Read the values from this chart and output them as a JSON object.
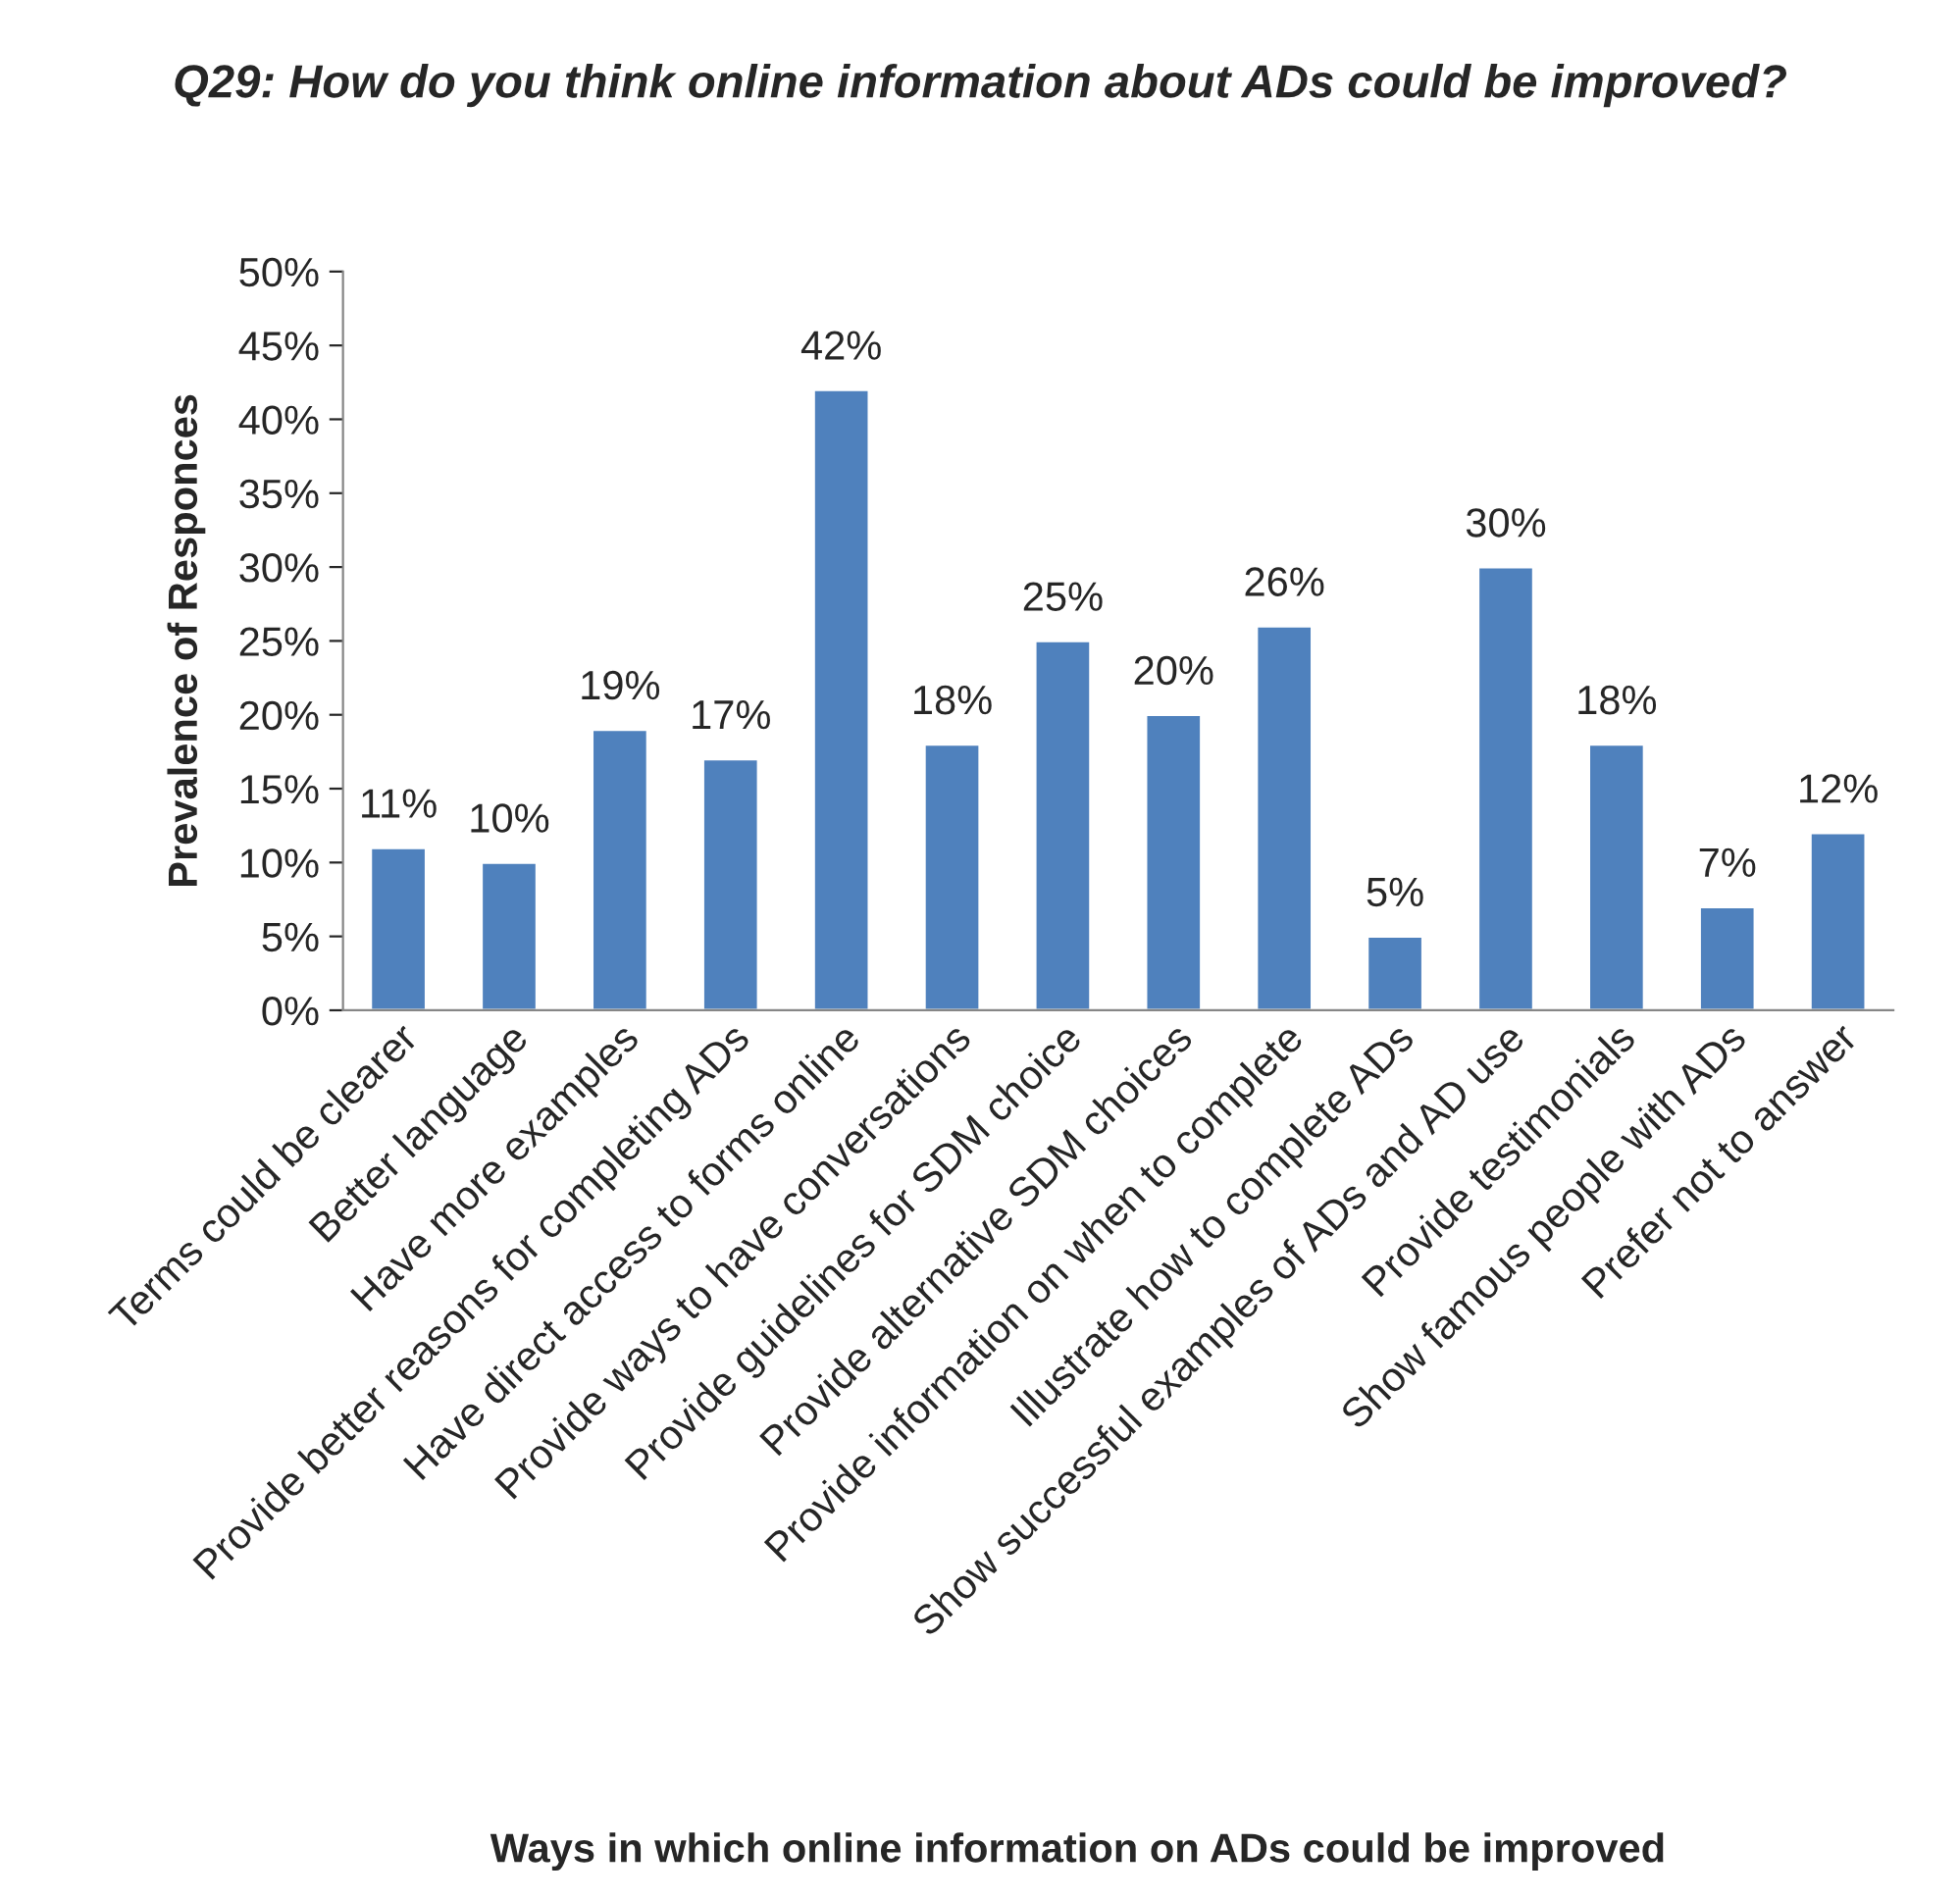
{
  "chart_data": {
    "type": "bar",
    "title": "Q29: How do you think online information about ADs could be improved?",
    "xlabel": "Ways in which online information on ADs could be improved",
    "ylabel": "Prevalence of Responces",
    "categories": [
      "Terms could be clearer",
      "Better language",
      "Have more examples",
      "Provide better reasons for completing ADs",
      "Have direct access to forms online",
      "Provide ways to have conversations",
      "Provide guidelines for SDM choice",
      "Provide alternative SDM choices",
      "Provide information on when to complete",
      "Illustrate how to complete ADs",
      "Show successful examples of ADs and AD use",
      "Provide testimonials",
      "Show famous people with ADs",
      "Prefer not to answer"
    ],
    "values": [
      11,
      10,
      19,
      17,
      42,
      18,
      25,
      20,
      26,
      5,
      30,
      18,
      7,
      12
    ],
    "value_labels": [
      "11%",
      "10%",
      "19%",
      "17%",
      "42%",
      "18%",
      "25%",
      "20%",
      "26%",
      "5%",
      "30%",
      "18%",
      "7%",
      "12%"
    ],
    "color": "#4f81bd",
    "ylim": [
      0,
      50
    ],
    "yticks": [
      {
        "value": 0,
        "label": "0%"
      },
      {
        "value": 5,
        "label": "5%"
      },
      {
        "value": 10,
        "label": "10%"
      },
      {
        "value": 15,
        "label": "15%"
      },
      {
        "value": 20,
        "label": "20%"
      },
      {
        "value": 25,
        "label": "25%"
      },
      {
        "value": 30,
        "label": "30%"
      },
      {
        "value": 35,
        "label": "35%"
      },
      {
        "value": 40,
        "label": "40%"
      },
      {
        "value": 45,
        "label": "45%"
      },
      {
        "value": 50,
        "label": "50%"
      }
    ],
    "grid": false,
    "legend": false
  }
}
